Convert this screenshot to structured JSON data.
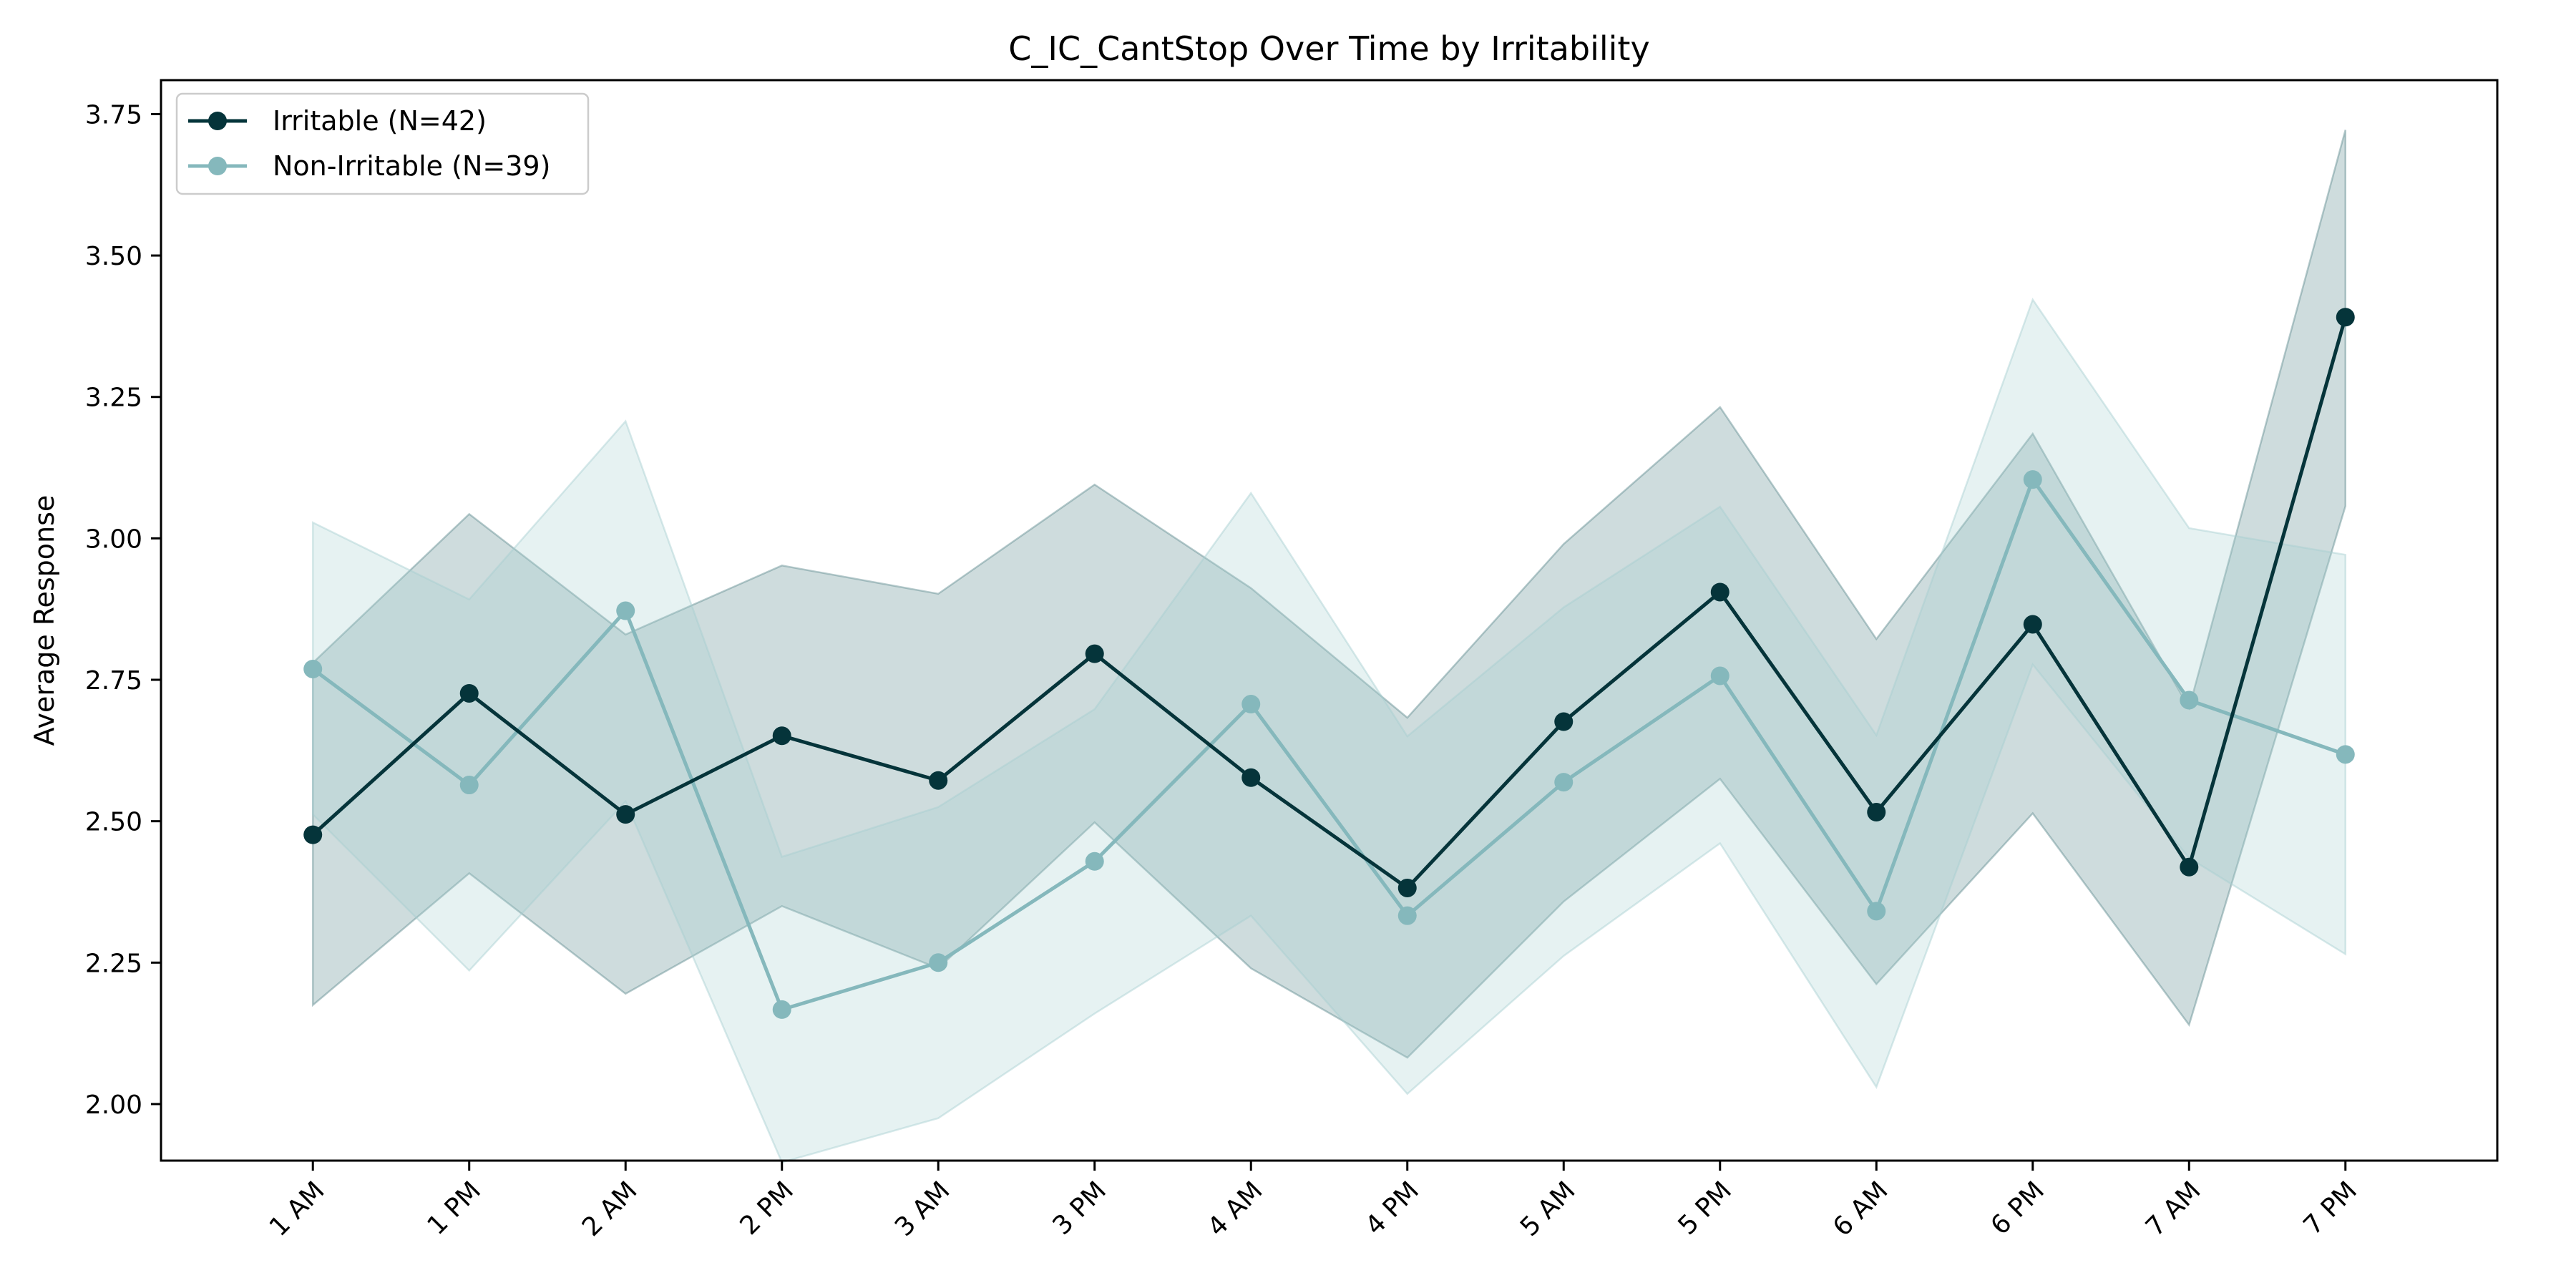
{
  "chart_data": {
    "type": "line",
    "title": "C_IC_CantStop Over Time by Irritability",
    "xlabel": "",
    "ylabel": "Average Response",
    "categories": [
      "1 AM",
      "1 PM",
      "2 AM",
      "2 PM",
      "3 AM",
      "3 PM",
      "4 AM",
      "4 PM",
      "5 AM",
      "5 PM",
      "6 AM",
      "6 PM",
      "7 AM",
      "7 PM"
    ],
    "ylim": [
      1.9,
      3.81
    ],
    "yticks": [
      2.0,
      2.25,
      2.5,
      2.75,
      3.0,
      3.25,
      3.5,
      3.75
    ],
    "ytick_labels": [
      "2.00",
      "2.25",
      "2.50",
      "2.75",
      "3.00",
      "3.25",
      "3.50",
      "3.75"
    ],
    "grid": false,
    "legend_position": "top-left",
    "series": [
      {
        "name": "Irritable (N=42)",
        "color": "#05343a",
        "values": [
          2.476,
          2.726,
          2.512,
          2.651,
          2.572,
          2.796,
          2.577,
          2.382,
          2.676,
          2.905,
          2.516,
          2.848,
          2.419,
          3.391
        ],
        "lower": [
          2.175,
          2.408,
          2.195,
          2.35,
          2.24,
          2.498,
          2.24,
          2.082,
          2.358,
          2.575,
          2.212,
          2.514,
          2.14,
          3.057
        ],
        "upper": [
          2.78,
          3.043,
          2.83,
          2.952,
          2.902,
          3.095,
          2.912,
          2.683,
          2.99,
          3.232,
          2.822,
          3.185,
          2.7,
          3.722
        ]
      },
      {
        "name": "Non-Irritable (N=39)",
        "color": "#85b8bc",
        "values": [
          2.769,
          2.564,
          2.872,
          2.167,
          2.25,
          2.429,
          2.707,
          2.333,
          2.569,
          2.757,
          2.341,
          3.104,
          2.714,
          2.618
        ],
        "lower": [
          2.512,
          2.236,
          2.535,
          1.897,
          1.975,
          2.16,
          2.333,
          2.018,
          2.262,
          2.461,
          2.03,
          2.777,
          2.435,
          2.265
        ],
        "upper": [
          3.028,
          2.892,
          3.207,
          2.437,
          2.525,
          2.698,
          3.08,
          2.65,
          2.878,
          3.056,
          2.652,
          3.422,
          3.018,
          2.971
        ]
      }
    ]
  }
}
